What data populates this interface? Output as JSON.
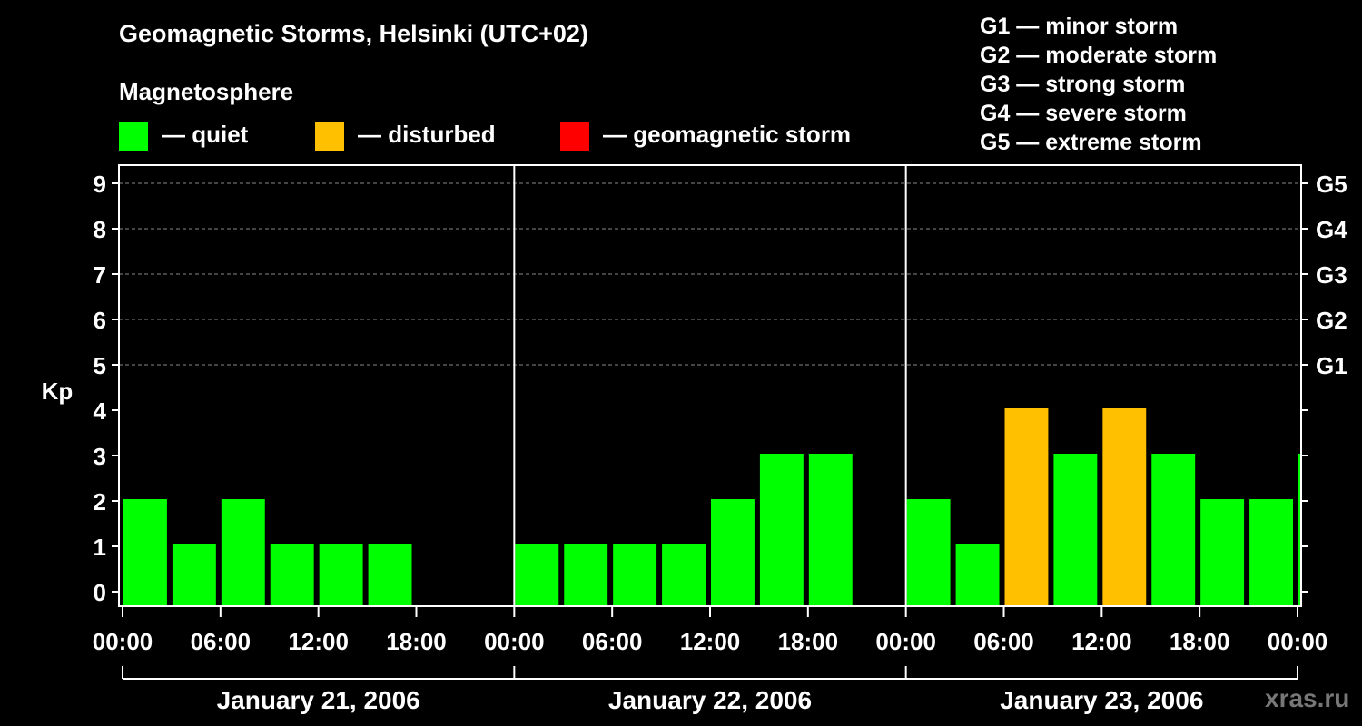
{
  "title": "Geomagnetic Storms, Helsinki (UTC+02)",
  "magnetosphere": {
    "heading": "Magnetosphere",
    "items": [
      {
        "label": "— quiet",
        "color": "#00ff00"
      },
      {
        "label": "— disturbed",
        "color": "#ffc000"
      },
      {
        "label": "— geomagnetic storm",
        "color": "#ff0000"
      }
    ]
  },
  "storm_scale": [
    "G1 — minor storm",
    "G2 — moderate storm",
    "G3 — strong storm",
    "G4 — severe storm",
    "G5 — extreme storm"
  ],
  "watermark": "xras.ru",
  "chart_data": {
    "type": "bar",
    "ylabel": "Kp",
    "ylim": [
      0,
      9
    ],
    "yticks": [
      "0",
      "1",
      "2",
      "3",
      "4",
      "5",
      "6",
      "7",
      "8",
      "9"
    ],
    "right_axis_labels": [
      {
        "kp": 5,
        "label": "G1"
      },
      {
        "kp": 6,
        "label": "G2"
      },
      {
        "kp": 7,
        "label": "G3"
      },
      {
        "kp": 8,
        "label": "G4"
      },
      {
        "kp": 9,
        "label": "G5"
      }
    ],
    "x_tick_labels": [
      "00:00",
      "06:00",
      "12:00",
      "18:00",
      "00:00",
      "06:00",
      "12:00",
      "18:00",
      "00:00",
      "06:00",
      "12:00",
      "18:00",
      "00:00"
    ],
    "days": [
      "January 21, 2006",
      "January 22, 2006",
      "January 23, 2006"
    ],
    "bars": [
      {
        "start_hour": 0,
        "end_hour": 3,
        "kp": 2,
        "status": "quiet"
      },
      {
        "start_hour": 3,
        "end_hour": 6,
        "kp": 1,
        "status": "quiet"
      },
      {
        "start_hour": 6,
        "end_hour": 9,
        "kp": 2,
        "status": "quiet"
      },
      {
        "start_hour": 9,
        "end_hour": 12,
        "kp": 1,
        "status": "quiet"
      },
      {
        "start_hour": 12,
        "end_hour": 15,
        "kp": 1,
        "status": "quiet"
      },
      {
        "start_hour": 15,
        "end_hour": 18,
        "kp": 1,
        "status": "quiet"
      },
      {
        "start_hour": 24,
        "end_hour": 27,
        "kp": 1,
        "status": "quiet"
      },
      {
        "start_hour": 27,
        "end_hour": 30,
        "kp": 1,
        "status": "quiet"
      },
      {
        "start_hour": 30,
        "end_hour": 33,
        "kp": 1,
        "status": "quiet"
      },
      {
        "start_hour": 33,
        "end_hour": 36,
        "kp": 1,
        "status": "quiet"
      },
      {
        "start_hour": 36,
        "end_hour": 39,
        "kp": 2,
        "status": "quiet"
      },
      {
        "start_hour": 39,
        "end_hour": 42,
        "kp": 3,
        "status": "quiet"
      },
      {
        "start_hour": 42,
        "end_hour": 45,
        "kp": 3,
        "status": "quiet"
      },
      {
        "start_hour": 48,
        "end_hour": 51,
        "kp": 2,
        "status": "quiet"
      },
      {
        "start_hour": 51,
        "end_hour": 54,
        "kp": 1,
        "status": "quiet"
      },
      {
        "start_hour": 54,
        "end_hour": 57,
        "kp": 4,
        "status": "disturbed"
      },
      {
        "start_hour": 57,
        "end_hour": 60,
        "kp": 3,
        "status": "quiet"
      },
      {
        "start_hour": 60,
        "end_hour": 63,
        "kp": 4,
        "status": "disturbed"
      },
      {
        "start_hour": 63,
        "end_hour": 66,
        "kp": 3,
        "status": "quiet"
      },
      {
        "start_hour": 66,
        "end_hour": 69,
        "kp": 2,
        "status": "quiet"
      },
      {
        "start_hour": 69,
        "end_hour": 72,
        "kp": 2,
        "status": "quiet"
      },
      {
        "start_hour": 72,
        "end_hour": 75,
        "kp": 3,
        "status": "quiet"
      }
    ],
    "x_range_hours": [
      0,
      72
    ],
    "grid": true
  }
}
